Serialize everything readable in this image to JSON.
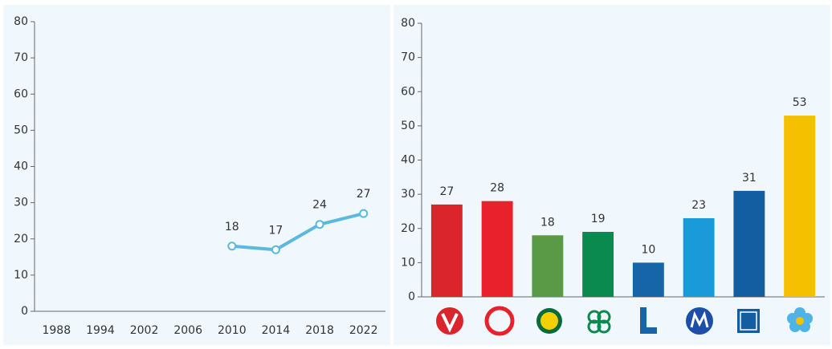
{
  "chart_data": [
    {
      "type": "line",
      "categories": [
        "1988",
        "1994",
        "2002",
        "2006",
        "2010",
        "2014",
        "2018",
        "2022"
      ],
      "values": [
        null,
        null,
        null,
        null,
        18,
        17,
        24,
        27
      ],
      "color": "#5bb8e0",
      "ylim": [
        0,
        80
      ],
      "yticks": [
        0,
        10,
        20,
        30,
        40,
        50,
        60,
        70,
        80
      ]
    },
    {
      "type": "bar",
      "categories": [
        null,
        null,
        null,
        null,
        null,
        null,
        null,
        null
      ],
      "values": [
        27,
        28,
        18,
        19,
        10,
        23,
        31,
        53
      ],
      "colors": [
        "#d9252b",
        "#e8212c",
        "#5a9a46",
        "#0a8a4e",
        "#1565a8",
        "#1a9ad9",
        "#125ea0",
        "#f5c000"
      ],
      "ylim": [
        0,
        80
      ],
      "yticks": [
        0,
        10,
        20,
        30,
        40,
        50,
        60,
        70,
        80
      ]
    }
  ]
}
